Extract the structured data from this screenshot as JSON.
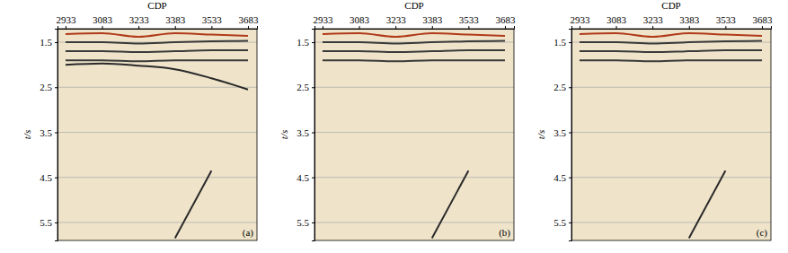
{
  "chart_data": [
    {
      "type": "line",
      "label": "(a)",
      "xlabel": "CDP",
      "ylabel": "t/s",
      "xlim": [
        2900,
        3720
      ],
      "ylim": [
        1.2,
        5.9
      ],
      "xticks": [
        2933,
        3083,
        3233,
        3383,
        3533,
        3683
      ],
      "yticks": [
        1.5,
        2.5,
        3.5,
        4.5,
        5.5
      ],
      "grid": true,
      "series": [
        {
          "color": "#b03a1a",
          "x": [
            2933,
            3083,
            3233,
            3383,
            3533,
            3683
          ],
          "values": [
            1.32,
            1.3,
            1.38,
            1.3,
            1.33,
            1.36
          ]
        },
        {
          "color": "#3a3a3a",
          "x": [
            2933,
            3083,
            3233,
            3383,
            3533,
            3683
          ],
          "values": [
            1.5,
            1.5,
            1.53,
            1.5,
            1.48,
            1.47
          ]
        },
        {
          "color": "#3a3a3a",
          "x": [
            2933,
            3083,
            3233,
            3383,
            3533,
            3683
          ],
          "values": [
            1.7,
            1.7,
            1.72,
            1.7,
            1.68,
            1.68
          ]
        },
        {
          "color": "#3a3a3a",
          "x": [
            2933,
            3083,
            3233,
            3383,
            3533,
            3683
          ],
          "values": [
            1.9,
            1.9,
            1.92,
            1.9,
            1.9,
            1.9
          ]
        },
        {
          "color": "#2a2a2a",
          "x": [
            2933,
            3083,
            3233,
            3383,
            3533,
            3683
          ],
          "values": [
            2.0,
            1.97,
            2.02,
            2.1,
            2.3,
            2.55
          ]
        },
        {
          "color": "#2a2a2a",
          "x": [
            3383,
            3533
          ],
          "values": [
            5.85,
            4.35
          ]
        }
      ]
    },
    {
      "type": "line",
      "label": "(b)",
      "xlabel": "CDP",
      "ylabel": "t/s",
      "xlim": [
        2900,
        3720
      ],
      "ylim": [
        1.2,
        5.9
      ],
      "xticks": [
        2933,
        3083,
        3233,
        3383,
        3533,
        3683
      ],
      "yticks": [
        1.5,
        2.5,
        3.5,
        4.5,
        5.5
      ],
      "grid": true,
      "series": [
        {
          "color": "#b03a1a",
          "x": [
            2933,
            3083,
            3233,
            3383,
            3533,
            3683
          ],
          "values": [
            1.32,
            1.3,
            1.38,
            1.3,
            1.33,
            1.36
          ]
        },
        {
          "color": "#3a3a3a",
          "x": [
            2933,
            3083,
            3233,
            3383,
            3533,
            3683
          ],
          "values": [
            1.5,
            1.5,
            1.53,
            1.5,
            1.48,
            1.47
          ]
        },
        {
          "color": "#3a3a3a",
          "x": [
            2933,
            3083,
            3233,
            3383,
            3533,
            3683
          ],
          "values": [
            1.7,
            1.7,
            1.72,
            1.7,
            1.68,
            1.68
          ]
        },
        {
          "color": "#3a3a3a",
          "x": [
            2933,
            3083,
            3233,
            3383,
            3533,
            3683
          ],
          "values": [
            1.9,
            1.9,
            1.92,
            1.9,
            1.9,
            1.9
          ]
        },
        {
          "color": "#2a2a2a",
          "x": [
            3383,
            3533
          ],
          "values": [
            5.85,
            4.35
          ]
        }
      ]
    },
    {
      "type": "line",
      "label": "(c)",
      "xlabel": "CDP",
      "ylabel": "t/s",
      "xlim": [
        2900,
        3720
      ],
      "ylim": [
        1.2,
        5.9
      ],
      "xticks": [
        2933,
        3083,
        3233,
        3383,
        3533,
        3683
      ],
      "yticks": [
        1.5,
        2.5,
        3.5,
        4.5,
        5.5
      ],
      "grid": true,
      "series": [
        {
          "color": "#b03a1a",
          "x": [
            2933,
            3083,
            3233,
            3383,
            3533,
            3683
          ],
          "values": [
            1.32,
            1.3,
            1.38,
            1.3,
            1.33,
            1.36
          ]
        },
        {
          "color": "#3a3a3a",
          "x": [
            2933,
            3083,
            3233,
            3383,
            3533,
            3683
          ],
          "values": [
            1.5,
            1.5,
            1.53,
            1.5,
            1.48,
            1.47
          ]
        },
        {
          "color": "#3a3a3a",
          "x": [
            2933,
            3083,
            3233,
            3383,
            3533,
            3683
          ],
          "values": [
            1.7,
            1.7,
            1.72,
            1.7,
            1.68,
            1.68
          ]
        },
        {
          "color": "#3a3a3a",
          "x": [
            2933,
            3083,
            3233,
            3383,
            3533,
            3683
          ],
          "values": [
            1.9,
            1.9,
            1.92,
            1.9,
            1.9,
            1.9
          ]
        },
        {
          "color": "#2a2a2a",
          "x": [
            3383,
            3533
          ],
          "values": [
            5.85,
            4.35
          ]
        }
      ]
    }
  ]
}
